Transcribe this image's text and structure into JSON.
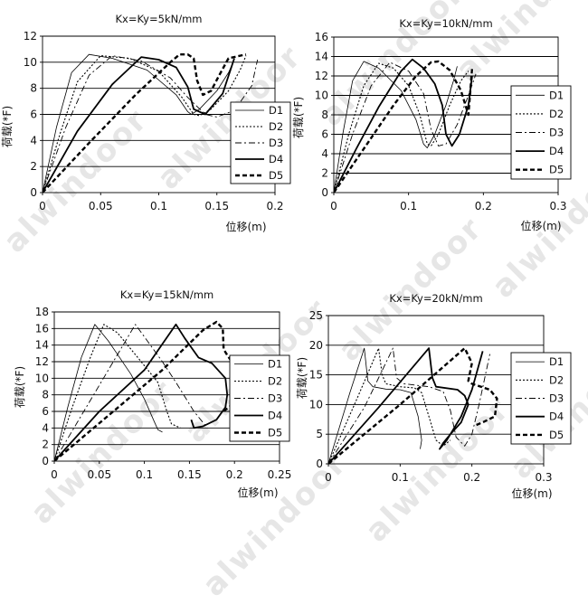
{
  "watermark": "alwindoor",
  "legend_labels": [
    "D1",
    "D2",
    "D3",
    "D4",
    "D5"
  ],
  "chart_data": [
    {
      "type": "line",
      "title": "Kx=Ky=5kN/mm",
      "xlabel": "位移(m)",
      "ylabel": "荷载(*F)",
      "xlim": [
        0,
        0.2
      ],
      "ylim": [
        0,
        12
      ],
      "xticks": [
        "0",
        "0.05",
        "0.1",
        "0.15",
        "0.2"
      ],
      "yticks": [
        "0",
        "2",
        "4",
        "6",
        "8",
        "10",
        "12"
      ],
      "grid": "horizontal",
      "legend": "right",
      "series": [
        {
          "name": "D1",
          "x": [
            0,
            0.012,
            0.025,
            0.04,
            0.06,
            0.09,
            0.115,
            0.125,
            0.128,
            0.135,
            0.15,
            0.16,
            0.165
          ],
          "y": [
            0,
            5,
            9.2,
            10.6,
            10.3,
            9.4,
            7.5,
            6.2,
            6.0,
            6.4,
            7.8,
            9.2,
            10.2
          ]
        },
        {
          "name": "D2",
          "x": [
            0,
            0.015,
            0.03,
            0.05,
            0.075,
            0.1,
            0.12,
            0.13,
            0.135,
            0.145,
            0.16,
            0.17,
            0.175
          ],
          "y": [
            0,
            4.5,
            8.5,
            10.5,
            10.3,
            9.3,
            7.3,
            6.0,
            5.9,
            6.4,
            7.8,
            9.4,
            10.5
          ]
        },
        {
          "name": "D3",
          "x": [
            0,
            0.02,
            0.04,
            0.06,
            0.085,
            0.11,
            0.125,
            0.14,
            0.15,
            0.165,
            0.18,
            0.185
          ],
          "y": [
            0,
            5,
            9,
            10.5,
            10.1,
            8.8,
            7.3,
            6.0,
            5.8,
            6.3,
            8.2,
            10.2
          ]
        },
        {
          "name": "D4",
          "x": [
            0,
            0.03,
            0.06,
            0.085,
            0.1,
            0.115,
            0.125,
            0.13,
            0.14,
            0.155,
            0.165
          ],
          "y": [
            0,
            4.7,
            8.3,
            10.4,
            10.2,
            9.6,
            8.1,
            6.4,
            6.0,
            7.6,
            10.3
          ]
        },
        {
          "name": "D5",
          "x": [
            0,
            0.04,
            0.08,
            0.11,
            0.118,
            0.125,
            0.13,
            0.133,
            0.138,
            0.145,
            0.152,
            0.16,
            0.175
          ],
          "y": [
            0,
            3.8,
            7.5,
            10.0,
            10.6,
            10.6,
            10.3,
            8.6,
            7.5,
            7.8,
            9.0,
            10.3,
            10.6
          ]
        }
      ]
    },
    {
      "type": "line",
      "title": "Kx=Ky=10kN/mm",
      "xlabel": "位移(m)",
      "ylabel": "荷载(*F)",
      "xlim": [
        0,
        0.3
      ],
      "ylim": [
        0,
        16
      ],
      "xticks": [
        "0",
        "0.1",
        "0.2",
        "0.3"
      ],
      "yticks": [
        "0",
        "2",
        "4",
        "6",
        "8",
        "10",
        "12",
        "14",
        "16"
      ],
      "grid": "horizontal",
      "legend": "right",
      "series": [
        {
          "name": "D1",
          "x": [
            0,
            0.012,
            0.025,
            0.04,
            0.06,
            0.09,
            0.11,
            0.12,
            0.125,
            0.135,
            0.15,
            0.16,
            0.165
          ],
          "y": [
            0,
            6,
            11.5,
            13.5,
            12.8,
            10.5,
            7.5,
            5,
            4.6,
            6,
            9,
            11.5,
            13
          ]
        },
        {
          "name": "D2",
          "x": [
            0,
            0.02,
            0.04,
            0.06,
            0.08,
            0.1,
            0.115,
            0.125,
            0.13,
            0.14,
            0.155,
            0.17,
            0.18
          ],
          "y": [
            0,
            6,
            11,
            13.3,
            12.8,
            11,
            8,
            5,
            4.8,
            6,
            9,
            11.5,
            12.5
          ]
        },
        {
          "name": "D3",
          "x": [
            0,
            0.025,
            0.05,
            0.075,
            0.1,
            0.12,
            0.13,
            0.14,
            0.15,
            0.165,
            0.18,
            0.19
          ],
          "y": [
            0,
            6,
            11,
            13.4,
            12.5,
            10.2,
            6.5,
            4.8,
            5.0,
            7.0,
            10,
            12.2
          ]
        },
        {
          "name": "D4",
          "x": [
            0,
            0.03,
            0.06,
            0.09,
            0.105,
            0.12,
            0.135,
            0.145,
            0.15,
            0.158,
            0.168,
            0.18,
            0.185
          ],
          "y": [
            0,
            4.5,
            8.8,
            12.5,
            13.7,
            12.8,
            11.2,
            9,
            6,
            4.8,
            6,
            9,
            12
          ]
        },
        {
          "name": "D5",
          "x": [
            0,
            0.04,
            0.08,
            0.11,
            0.13,
            0.14,
            0.155,
            0.17,
            0.18,
            0.185
          ],
          "y": [
            0,
            4.5,
            9,
            12,
            13.4,
            13.5,
            12.6,
            10.5,
            8,
            12.8
          ]
        }
      ]
    },
    {
      "type": "line",
      "title": "Kx=Ky=15kN/mm",
      "xlabel": "位移(m)",
      "ylabel": "荷载(*F)",
      "xlim": [
        0,
        0.25
      ],
      "ylim": [
        0,
        18
      ],
      "xticks": [
        "0",
        "0.05",
        "0.1",
        "0.15",
        "0.2",
        "0.25"
      ],
      "yticks": [
        "0",
        "2",
        "4",
        "6",
        "8",
        "10",
        "12",
        "14",
        "16",
        "18"
      ],
      "grid": "horizontal",
      "legend": "right",
      "series": [
        {
          "name": "D1",
          "x": [
            0,
            0.015,
            0.03,
            0.045,
            0.06,
            0.085,
            0.1,
            0.11,
            0.115,
            0.12
          ],
          "y": [
            0,
            6.5,
            12.5,
            16.5,
            14.5,
            10.5,
            7.5,
            5.0,
            3.8,
            3.5
          ]
        },
        {
          "name": "D2",
          "x": [
            0,
            0.02,
            0.04,
            0.055,
            0.07,
            0.095,
            0.115,
            0.125,
            0.13,
            0.14
          ],
          "y": [
            0,
            6.5,
            12.5,
            16.5,
            15.5,
            12.2,
            9.5,
            6,
            4.5,
            4.0
          ]
        },
        {
          "name": "D3",
          "x": [
            0,
            0.03,
            0.06,
            0.09,
            0.1,
            0.12,
            0.135,
            0.155,
            0.17
          ],
          "y": [
            0,
            5.5,
            11,
            16.5,
            15,
            12,
            9.5,
            6,
            4.0
          ]
        },
        {
          "name": "D4",
          "x": [
            0,
            0.05,
            0.1,
            0.135,
            0.145,
            0.16,
            0.175,
            0.19,
            0.192,
            0.19,
            0.18,
            0.165,
            0.155,
            0.152
          ],
          "y": [
            0,
            6,
            11,
            16.5,
            14.8,
            12.5,
            11.8,
            10,
            8,
            6.5,
            5,
            4.2,
            4.0,
            5.0
          ]
        },
        {
          "name": "D5",
          "x": [
            0,
            0.06,
            0.12,
            0.165,
            0.18,
            0.187,
            0.188,
            0.192,
            0.2,
            0.205,
            0.2,
            0.19,
            0.185
          ],
          "y": [
            0,
            5.5,
            11,
            15.8,
            16.8,
            16,
            13.5,
            12.8,
            11.5,
            9,
            7,
            6.2,
            6
          ]
        }
      ]
    },
    {
      "type": "line",
      "title": "Kx=Ky=20kN/mm",
      "xlabel": "位移(m)",
      "ylabel": "荷载(*F)",
      "xlim": [
        0,
        0.3
      ],
      "ylim": [
        0,
        25
      ],
      "xticks": [
        "0",
        "0.1",
        "0.2",
        "0.3"
      ],
      "yticks": [
        "0",
        "5",
        "10",
        "15",
        "20",
        "25"
      ],
      "grid": "horizontal",
      "legend": "right",
      "series": [
        {
          "name": "D1",
          "x": [
            0,
            0.03,
            0.05,
            0.055,
            0.062,
            0.08,
            0.1,
            0.115,
            0.125,
            0.13,
            0.128
          ],
          "y": [
            0,
            12,
            19.5,
            14,
            13,
            12.6,
            12.5,
            12,
            8,
            4,
            2.5
          ]
        },
        {
          "name": "D2",
          "x": [
            0,
            0.04,
            0.07,
            0.075,
            0.08,
            0.1,
            0.12,
            0.13,
            0.14,
            0.15,
            0.16,
            0.17
          ],
          "y": [
            0,
            11,
            19.5,
            15,
            13.5,
            13,
            12.8,
            12,
            8,
            4,
            3,
            4
          ]
        },
        {
          "name": "D3",
          "x": [
            0,
            0.05,
            0.09,
            0.095,
            0.105,
            0.14,
            0.16,
            0.17,
            0.178,
            0.19,
            0.2,
            0.21,
            0.225
          ],
          "y": [
            0,
            9.5,
            19.5,
            14.5,
            13.5,
            13,
            12.2,
            9,
            4.5,
            3,
            5,
            10,
            18.5
          ]
        },
        {
          "name": "D4",
          "x": [
            0,
            0.07,
            0.14,
            0.145,
            0.15,
            0.18,
            0.19,
            0.195,
            0.185,
            0.17,
            0.16,
            0.155,
            0.165,
            0.185,
            0.2,
            0.215
          ],
          "y": [
            0,
            9.5,
            19.5,
            14.5,
            13,
            12.5,
            11.5,
            10,
            7,
            5,
            3.5,
            2.5,
            4,
            8,
            12.5,
            19
          ]
        },
        {
          "name": "D5",
          "x": [
            0,
            0.1,
            0.19,
            0.2,
            0.195,
            0.2,
            0.225,
            0.235,
            0.232,
            0.215,
            0.205
          ],
          "y": [
            0,
            10,
            19.5,
            17,
            14,
            13.5,
            12.5,
            11,
            8,
            7,
            6.5
          ]
        }
      ]
    }
  ]
}
